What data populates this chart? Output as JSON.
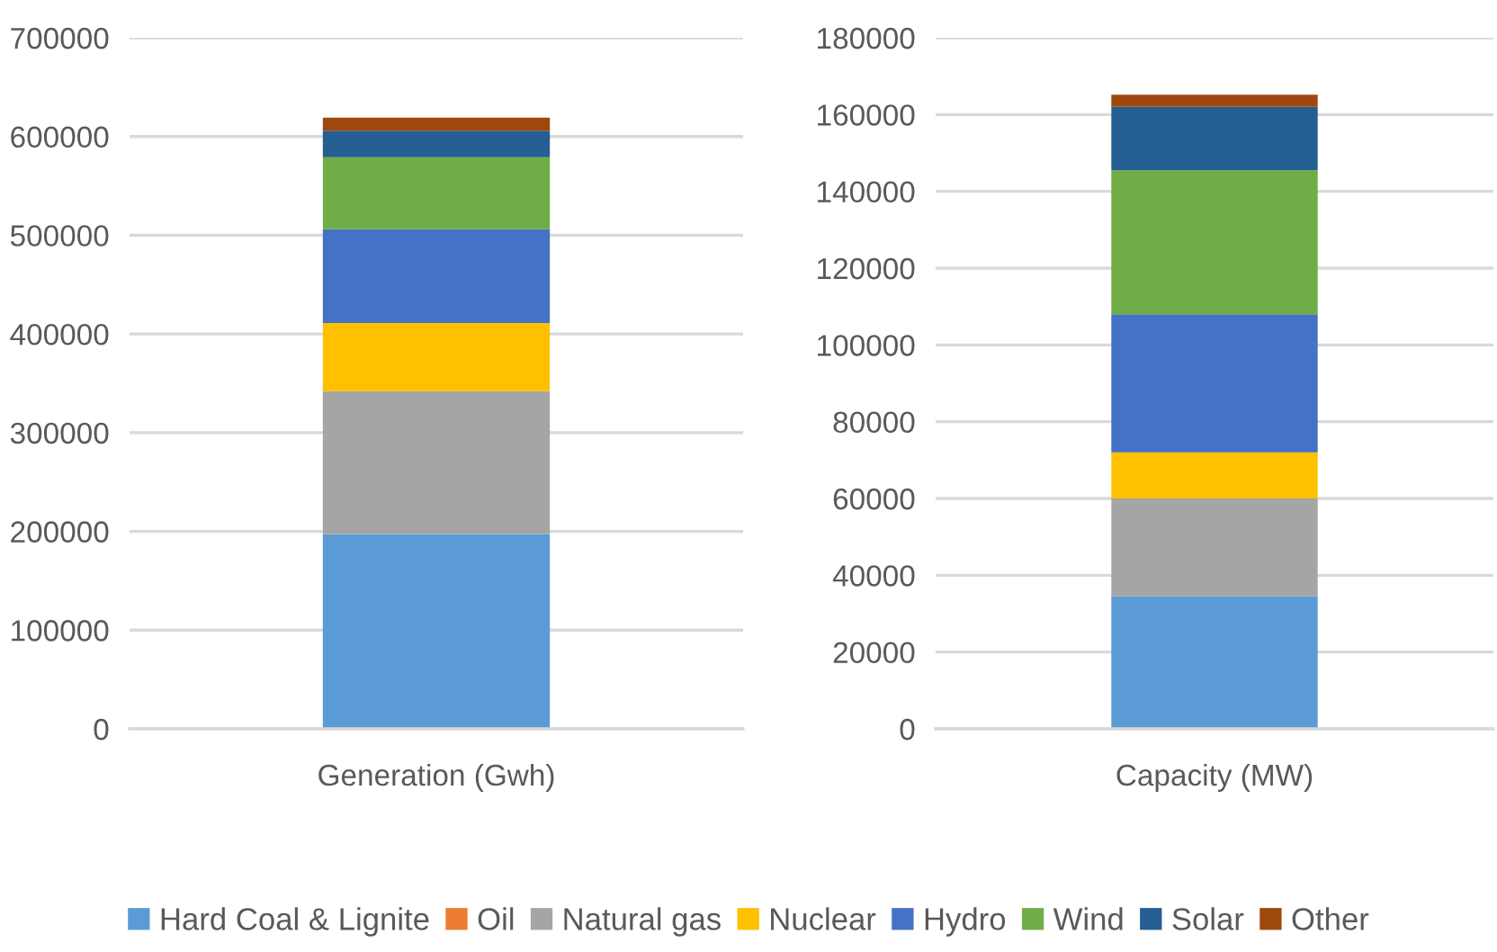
{
  "chart_data": [
    {
      "type": "bar",
      "stacked": true,
      "categories": [
        "Generation (Gwh)"
      ],
      "ylim": [
        0,
        700000
      ],
      "yticks": [
        0,
        100000,
        200000,
        300000,
        400000,
        500000,
        600000,
        700000
      ],
      "grid": "y",
      "legend": "bottom",
      "series": [
        {
          "name": "Hard Coal & Lignite",
          "color": "#5b9bd5",
          "values": [
            197000
          ]
        },
        {
          "name": "Oil",
          "color": "#ed7d31",
          "values": [
            null
          ]
        },
        {
          "name": "Natural gas",
          "color": "#a5a5a5",
          "values": [
            145000
          ]
        },
        {
          "name": "Nuclear",
          "color": "#ffc000",
          "values": [
            69000
          ]
        },
        {
          "name": "Hydro",
          "color": "#4472c4",
          "values": [
            95000
          ]
        },
        {
          "name": "Wind",
          "color": "#70ad47",
          "values": [
            73000
          ]
        },
        {
          "name": "Solar",
          "color": "#255e91",
          "values": [
            27000
          ]
        },
        {
          "name": "Other",
          "color": "#9e480e",
          "values": [
            13000
          ]
        }
      ]
    },
    {
      "type": "bar",
      "stacked": true,
      "categories": [
        "Capacity (MW)"
      ],
      "ylim": [
        0,
        180000
      ],
      "yticks": [
        0,
        20000,
        40000,
        60000,
        80000,
        100000,
        120000,
        140000,
        160000,
        180000
      ],
      "grid": "y",
      "series": [
        {
          "color": "#5b9bd5",
          "values": [
            34500
          ]
        },
        {
          "color": "#a5a5a5",
          "values": [
            25500
          ]
        },
        {
          "color": "#ffc000",
          "values": [
            12000
          ]
        },
        {
          "color": "#4472c4",
          "values": [
            36000
          ]
        },
        {
          "color": "#70ad47",
          "values": [
            37500
          ]
        },
        {
          "color": "#255e91",
          "values": [
            16500
          ]
        },
        {
          "color": "#9e480e",
          "values": [
            3200
          ]
        }
      ]
    }
  ]
}
